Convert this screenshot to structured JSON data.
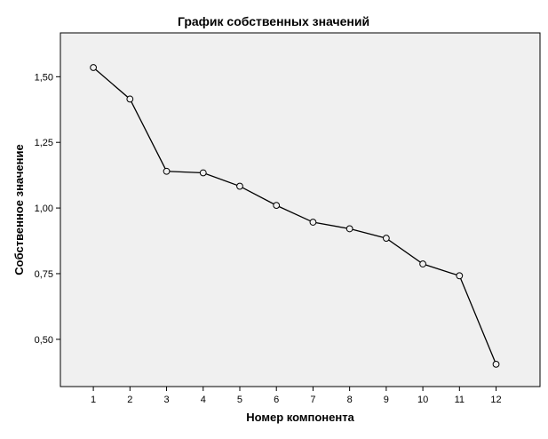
{
  "chart_data": {
    "type": "line",
    "title": "График собственных значений",
    "xlabel": "Номер компонента",
    "ylabel": "Собственное значение",
    "x": [
      1,
      2,
      3,
      4,
      5,
      6,
      7,
      8,
      9,
      10,
      11,
      12
    ],
    "series": [
      {
        "values": [
          1.535,
          1.415,
          1.14,
          1.134,
          1.083,
          1.01,
          0.946,
          0.921,
          0.885,
          0.787,
          0.742,
          0.405
        ]
      }
    ],
    "x_ticks": [
      "1",
      "2",
      "3",
      "4",
      "5",
      "6",
      "7",
      "8",
      "9",
      "10",
      "11",
      "12"
    ],
    "y_ticks": [
      {
        "value": 0.5,
        "label": "0,50"
      },
      {
        "value": 0.75,
        "label": "0,75"
      },
      {
        "value": 1.0,
        "label": "1,00"
      },
      {
        "value": 1.25,
        "label": "1,25"
      },
      {
        "value": 1.5,
        "label": "1,50"
      }
    ],
    "xlim": [
      0.1,
      13.2
    ],
    "ylim": [
      0.32,
      1.667
    ],
    "grid": false,
    "colors": {
      "plot_background": "#f0f0f0",
      "line": "#000000",
      "marker_stroke": "#000000",
      "marker_fill": "#f0f0f0"
    }
  }
}
